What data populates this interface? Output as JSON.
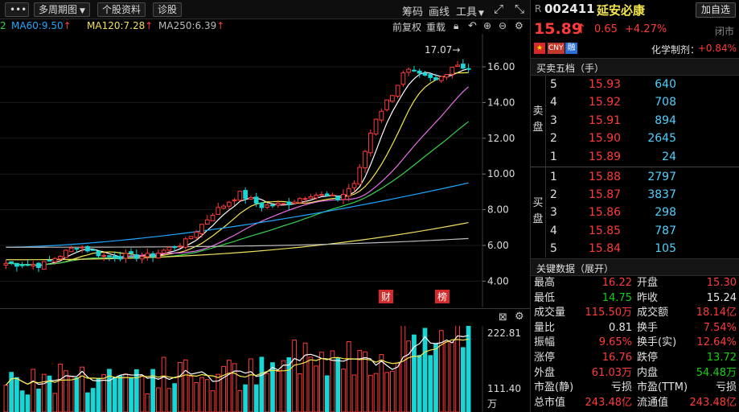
{
  "toolbar": {
    "menu_label": "•••",
    "period_label": "多周期图",
    "info_label": "个股资料",
    "diag_label": "诊股",
    "chips_label": "筹码",
    "draw_label": "画线",
    "tools_label": "工具",
    "expand_icon": "expand-icon"
  },
  "indicators": {
    "prefix": "2",
    "ma60": "MA60:9.50",
    "ma120": "MA120:7.28",
    "ma250": "MA250:6.39",
    "arrow": "↑",
    "fq_label": "前复权",
    "reload_label": "重载"
  },
  "price_axis": [
    "16.00",
    "14.00",
    "12.00",
    "10.00",
    "8.00",
    "6.00",
    "4.00"
  ],
  "high_marker": "17.07→",
  "event_markers": [
    "财",
    "榜"
  ],
  "volume_axis": [
    "222.81",
    "111.40",
    "万"
  ],
  "stock": {
    "prefix": "R",
    "code": "002411",
    "name": "延安必康",
    "add_watch": "加自选",
    "price": "15.89",
    "up_arrow": "↑",
    "change": "0.65",
    "change_pct": "+4.27%",
    "status": "闭市",
    "badges": [
      "CNY",
      "融"
    ],
    "sector_label": "化学制剂：",
    "sector_change": "+0.84%"
  },
  "orderbook": {
    "title": "买卖五档（手）",
    "sell_label": [
      "卖",
      "盘"
    ],
    "buy_label": [
      "买",
      "盘"
    ],
    "asks": [
      {
        "idx": "5",
        "price": "15.93",
        "vol": "640"
      },
      {
        "idx": "4",
        "price": "15.92",
        "vol": "708"
      },
      {
        "idx": "3",
        "price": "15.91",
        "vol": "894"
      },
      {
        "idx": "2",
        "price": "15.90",
        "vol": "2645"
      },
      {
        "idx": "1",
        "price": "15.89",
        "vol": "24"
      }
    ],
    "bids": [
      {
        "idx": "1",
        "price": "15.88",
        "vol": "2797"
      },
      {
        "idx": "2",
        "price": "15.87",
        "vol": "3837"
      },
      {
        "idx": "3",
        "price": "15.86",
        "vol": "298"
      },
      {
        "idx": "4",
        "price": "15.85",
        "vol": "787"
      },
      {
        "idx": "5",
        "price": "15.84",
        "vol": "105"
      }
    ]
  },
  "key_data": {
    "title": "关键数据（展开）",
    "rows": [
      {
        "l1": "最高",
        "v1": "16.22",
        "c1": "red",
        "l2": "开盘",
        "v2": "15.30",
        "c2": "red"
      },
      {
        "l1": "最低",
        "v1": "14.75",
        "c1": "green",
        "l2": "昨收",
        "v2": "15.24",
        "c2": "white"
      },
      {
        "l1": "成交量",
        "v1": "115.50万",
        "c1": "red",
        "l2": "成交额",
        "v2": "18.14亿",
        "c2": "red"
      },
      {
        "l1": "量比",
        "v1": "0.81",
        "c1": "white",
        "l2": "换手",
        "v2": "7.54%",
        "c2": "red"
      },
      {
        "l1": "振幅",
        "v1": "9.65%",
        "c1": "red",
        "l2": "换手(实)",
        "v2": "12.64%",
        "c2": "red"
      },
      {
        "l1": "涨停",
        "v1": "16.76",
        "c1": "red",
        "l2": "跌停",
        "v2": "13.72",
        "c2": "green"
      },
      {
        "l1": "外盘",
        "v1": "61.03万",
        "c1": "red",
        "l2": "内盘",
        "v2": "54.48万",
        "c2": "green"
      },
      {
        "l1": "市盈(静)",
        "v1": "亏损",
        "c1": "white",
        "l2": "市盈(TTM)",
        "v2": "亏损",
        "c2": "white"
      },
      {
        "l1": "总市值",
        "v1": "243.48亿",
        "c1": "red",
        "l2": "流通值",
        "v2": "243.48亿",
        "c2": "red"
      }
    ]
  },
  "colors": {
    "up": "#ff3b3b",
    "down": "#18d6d6",
    "ma5": "#ffffff",
    "ma10": "#f5e64a",
    "ma20": "#e86ee8",
    "ma30": "#34d34a",
    "ma60": "#1ea8ff",
    "ma120": "#f0e060",
    "ma250": "#bbbbbb"
  }
}
